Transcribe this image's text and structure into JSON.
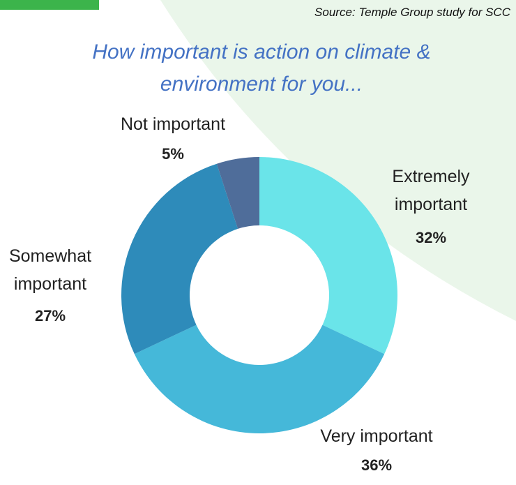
{
  "chart_data": {
    "type": "donut",
    "title": "How important is action on climate & environment for you...",
    "source": "Source: Temple Group study for SCC",
    "categories": [
      "Extremely important",
      "Very important",
      "Somewhat important",
      "Not important"
    ],
    "values": [
      32,
      36,
      27,
      5
    ],
    "value_labels": [
      "32%",
      "36%",
      "27%",
      "5%"
    ],
    "colors": [
      "#6ae4e9",
      "#45b8d9",
      "#2e8bba",
      "#4f6d9a"
    ]
  }
}
